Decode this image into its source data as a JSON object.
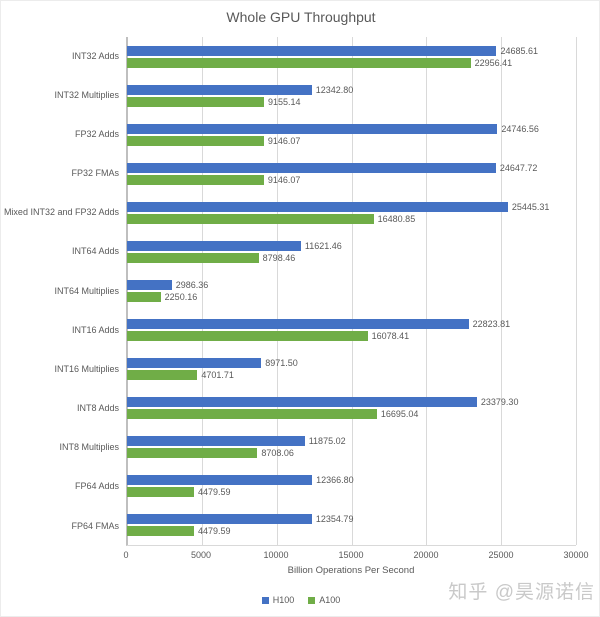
{
  "title": "Whole GPU Throughput",
  "watermark": "知乎 @昊源诺信",
  "colors": {
    "h100": "#4472C4",
    "a100": "#70AD47",
    "text": "#595959",
    "gridline": "#D9D9D9",
    "axis": "#BFBFBF",
    "watermark": "#C9C9C9"
  },
  "chart_data": {
    "type": "bar",
    "orientation": "horizontal",
    "title": "Whole GPU Throughput",
    "categories": [
      "INT32 Adds",
      "INT32 Multiplies",
      "FP32 Adds",
      "FP32 FMAs",
      "Mixed INT32 and FP32 Adds",
      "INT64 Adds",
      "INT64 Multiplies",
      "INT16 Adds",
      "INT16 Multiplies",
      "INT8 Adds",
      "INT8 Multiplies",
      "FP64 Adds",
      "FP64 FMAs"
    ],
    "series": [
      {
        "name": "H100",
        "color": "#4472C4",
        "values": [
          24685.61,
          12342.8,
          24746.56,
          24647.72,
          25445.31,
          11621.46,
          2986.36,
          22823.81,
          8971.5,
          23379.3,
          11875.02,
          12366.8,
          12354.79
        ]
      },
      {
        "name": "A100",
        "color": "#70AD47",
        "values": [
          22956.41,
          9155.14,
          9146.07,
          9146.07,
          16480.85,
          8798.46,
          2250.16,
          16078.41,
          4701.71,
          16695.04,
          8708.06,
          4479.59,
          4479.59
        ]
      }
    ],
    "xlabel": "Billion Operations Per Second",
    "xlim": [
      0,
      30000
    ],
    "xticks": [
      0,
      5000,
      10000,
      15000,
      20000,
      25000,
      30000
    ],
    "grid": true,
    "value_labels": true,
    "value_label_decimals": 2,
    "legend_position": "bottom"
  }
}
